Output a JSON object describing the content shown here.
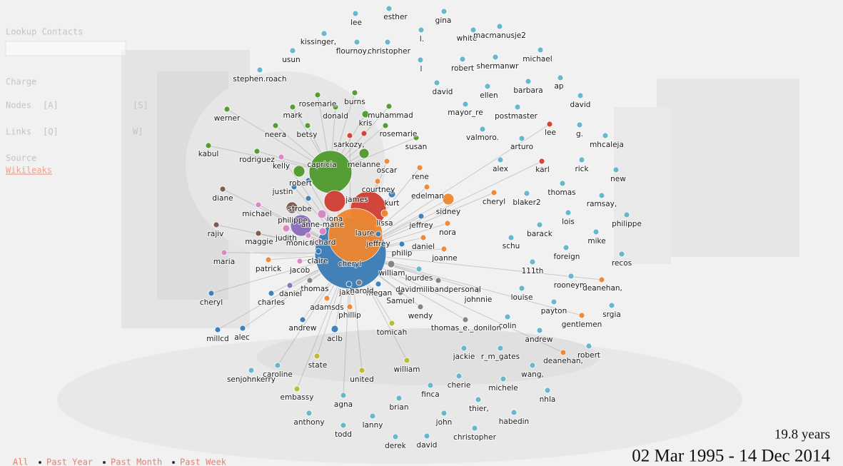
{
  "sidebar": {
    "lookup_label": "Lookup Contacts",
    "charge": "Charge",
    "nodes": "Nodes",
    "nodes_key_a": "[A]",
    "nodes_key_s": "[S]",
    "links": "Links",
    "links_key_q": "[Q]",
    "links_key_w": "W]",
    "source": "Source",
    "source_name": "Wikileaks"
  },
  "nodes": [
    "lee",
    "esther",
    "gina",
    "l.",
    "white",
    "macmanusje2",
    "kissinger,",
    "flournoy,",
    "christopher",
    "usun",
    "l",
    "robert",
    "shermanwr",
    "michael",
    "stephen.roach",
    "david",
    "ellen",
    "barbara",
    "ap",
    "david",
    "mayor_re",
    "postmaster",
    "lee",
    "g.",
    "mhcaleja",
    "valmoro.",
    "arturo",
    "alex",
    "karl",
    "rick",
    "new",
    "thomas",
    "ramsay,",
    "cheryl",
    "blaker2",
    "lois",
    "philippe",
    "barack",
    "mike",
    "schu",
    "foreign",
    "recos",
    "111th",
    "rooneym",
    "deanehan,",
    "louise",
    "payton",
    "srgia",
    "gentlemen",
    "colin",
    "andrew",
    "robert",
    "deanehan,",
    "jackie",
    "r_m_gates",
    "wang,",
    "cherie",
    "michele",
    "nhla",
    "finca",
    "thier,",
    "habedin",
    "john",
    "christopher",
    "derek",
    "david",
    "brian",
    "lanny",
    "todd",
    "agna",
    "anthony",
    "embassy",
    "senjohnkerry",
    "caroline",
    "state",
    "united",
    "william",
    "tomicah",
    "aclb",
    "andrew",
    "phillip",
    "adamsds",
    "wendy",
    "thomas_e._donilon",
    "johnnie",
    "davidmilibandpersonal",
    "Samuel",
    "megan",
    "jake",
    "harold",
    "lourdes",
    "william",
    "joanne",
    "daniel",
    "philip",
    "jeffrey",
    "nora",
    "sidney",
    "edelman",
    "rene",
    "courtney",
    "oscar",
    "kurt",
    "lissa",
    "cheryl",
    "laure",
    "jeffrey",
    "james",
    "capricia",
    "melanne",
    "kris",
    "muhammad",
    "rosemarie",
    "susan",
    "sarkozy,",
    "burns",
    "donald",
    "rosemarie",
    "mark",
    "neera",
    "betsy",
    "werner",
    "kabul",
    "rodriguez",
    "kelly",
    "robert",
    "justin",
    "diane",
    "strobe",
    "iona",
    "michael",
    "philippe",
    "anne-marie",
    "rajiv",
    "judith",
    "monica",
    "richard",
    "maggie",
    "maria",
    "claire",
    "patrick",
    "jacob",
    "thomas",
    "daniel",
    "charles",
    "cheryl",
    "alec",
    "millcd"
  ],
  "time_filters": [
    "All",
    "Past Year",
    "Past Month",
    "Past Week"
  ],
  "duration": "19.8 years",
  "date_range": "02 Mar 1995 - 14 Dec 2014"
}
